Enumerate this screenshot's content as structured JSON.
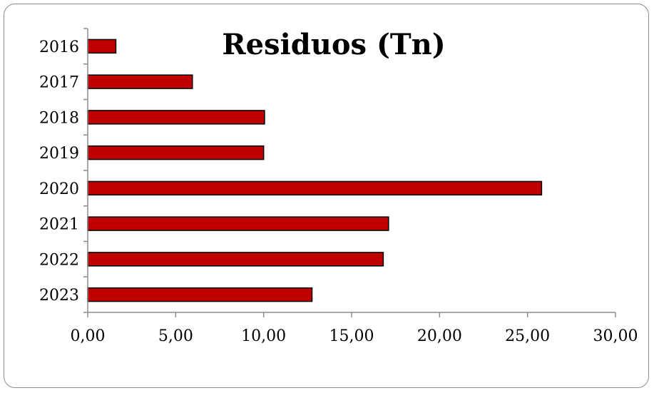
{
  "chart_data": {
    "type": "bar",
    "orientation": "horizontal",
    "title": "Residuos (Tn)",
    "categories": [
      "2016",
      "2017",
      "2018",
      "2019",
      "2020",
      "2021",
      "2022",
      "2023"
    ],
    "values": [
      1.6,
      5.95,
      10.05,
      10.0,
      25.8,
      17.1,
      16.8,
      12.75
    ],
    "xlim": [
      0,
      30
    ],
    "xticks": [
      0,
      5,
      10,
      15,
      20,
      25,
      30
    ],
    "xtick_labels": [
      "0,00",
      "5,00",
      "10,00",
      "15,00",
      "20,00",
      "25,00",
      "30,00"
    ],
    "grid": false,
    "legend": "none",
    "bar_color": "#c00000",
    "bar_edge_color": "#000000"
  }
}
